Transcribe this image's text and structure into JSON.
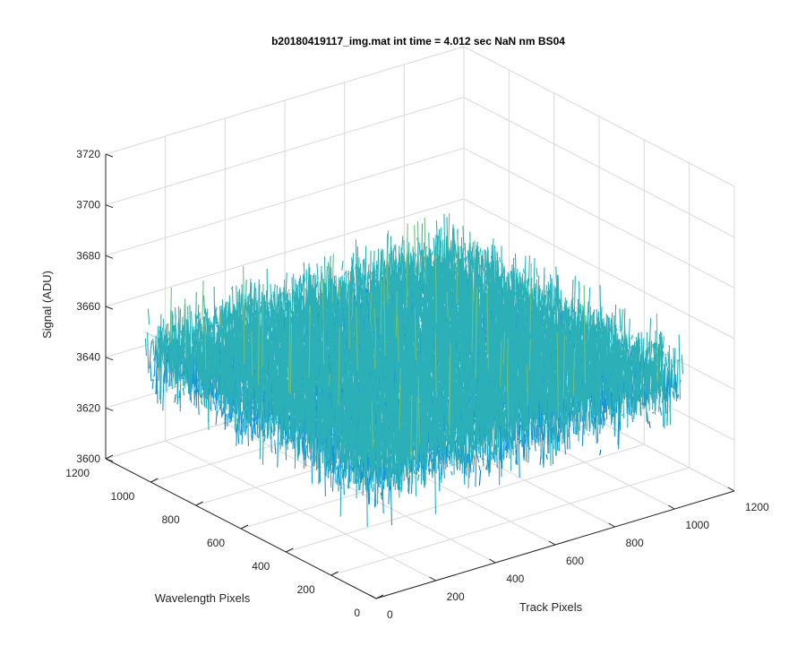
{
  "chart_data": {
    "type": "surface",
    "title": "b20180419117_img.mat int time = 4.012 sec  NaN nm BS04",
    "xlabel": "Track Pixels",
    "ylabel": "Wavelength Pixels",
    "zlabel": "Signal (ADU)",
    "x_ticks": [
      "0",
      "200",
      "400",
      "600",
      "800",
      "1000",
      "1200"
    ],
    "y_ticks": [
      "0",
      "200",
      "400",
      "600",
      "800",
      "1000",
      "1200"
    ],
    "z_ticks": [
      "3600",
      "3620",
      "3640",
      "3660",
      "3680",
      "3700",
      "3720"
    ],
    "xlim": [
      0,
      1200
    ],
    "ylim": [
      0,
      1200
    ],
    "zlim": [
      3600,
      3720
    ],
    "data_extent": {
      "x": [
        0,
        1024
      ],
      "y": [
        0,
        1024
      ]
    },
    "z_mean": 3650,
    "z_noise_range": [
      3620,
      3705
    ],
    "view": "3-D perspective (MATLAB default azimuth -37.5, elevation 30)",
    "grid": true,
    "colormap": [
      "#0072bd",
      "#1696d2",
      "#2bb0b8",
      "#6dbf7d",
      "#edb120"
    ]
  }
}
